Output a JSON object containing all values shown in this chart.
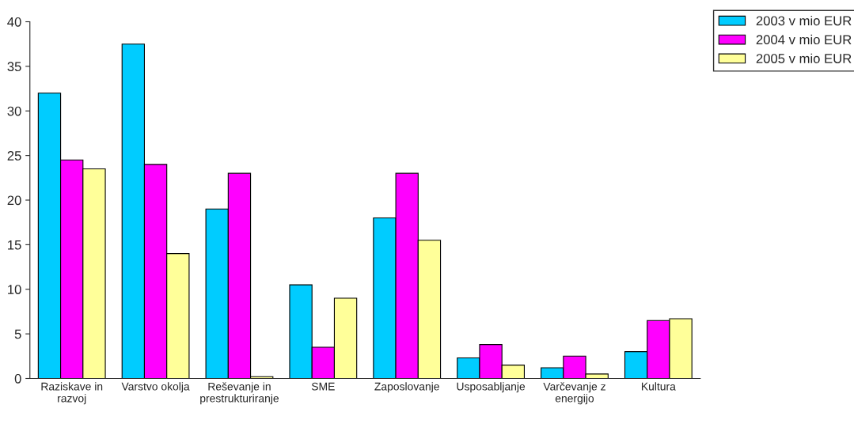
{
  "chart_data": {
    "type": "bar",
    "categories": [
      "Raziskave in razvoj",
      "Varstvo okolja",
      "Reševanje in prestrukturiranje",
      "SME",
      "Zaposlovanje",
      "Usposabljanje",
      "Varčevanje z energijo",
      "Kultura"
    ],
    "series": [
      {
        "name": "2003 v mio EUR",
        "color": "#00ccff",
        "values": [
          32,
          37.5,
          19,
          10.5,
          18,
          2.3,
          1.2,
          3
        ]
      },
      {
        "name": "2004 v mio EUR",
        "color": "#ff00ff",
        "values": [
          24.5,
          24,
          23,
          3.5,
          23,
          3.8,
          2.5,
          6.5
        ]
      },
      {
        "name": "2005 v mio EUR",
        "color": "#ffff99",
        "values": [
          23.5,
          14,
          0.2,
          9,
          15.5,
          1.5,
          0.5,
          6.7
        ]
      }
    ],
    "ylim": [
      0,
      40
    ],
    "yticks": [
      0,
      5,
      10,
      15,
      20,
      25,
      30,
      35,
      40
    ],
    "grid": false,
    "legend": "top right"
  }
}
